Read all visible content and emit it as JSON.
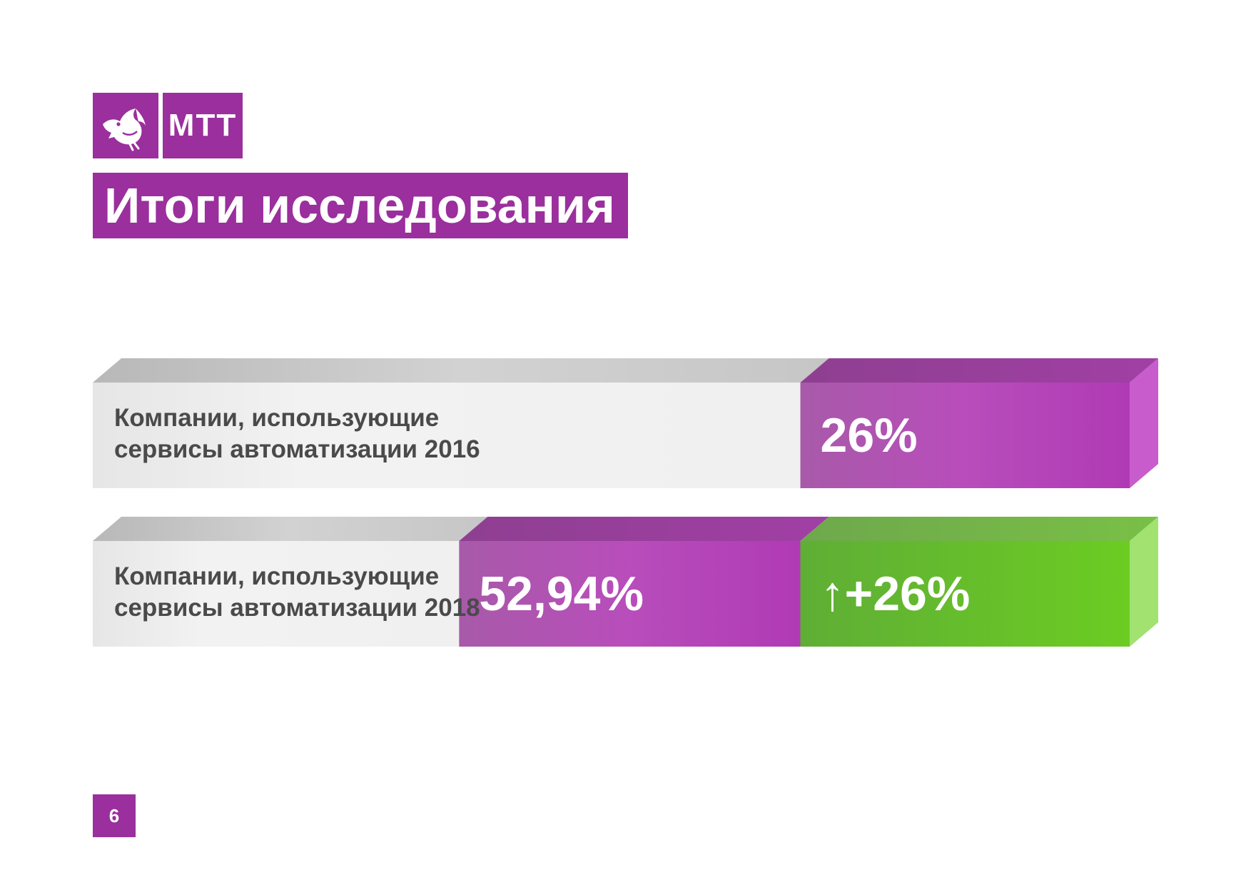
{
  "logo": {
    "icon": "bird-icon",
    "text": "МТТ"
  },
  "title": "Итоги исследования",
  "page_number": "6",
  "colors": {
    "brand_purple": "#9a2f9d",
    "bar_purple": "#b040b3",
    "bar_green": "#6ac72a",
    "bar_gray": "#ececec"
  },
  "chart_data": {
    "type": "bar",
    "orientation": "horizontal",
    "stacked": true,
    "rows": [
      {
        "label_lines": [
          "Компании, использующие",
          "сервисы автоматизации 2016"
        ],
        "category": "2016",
        "segments": [
          {
            "value": 26,
            "label": "26%",
            "color": "purple"
          }
        ]
      },
      {
        "label_lines": [
          "Компании, использующие",
          "сервисы автоматизации 2018"
        ],
        "category": "2018",
        "segments": [
          {
            "value": 26.94,
            "label": "52,94%",
            "color": "purple"
          },
          {
            "value": 26,
            "label": "↑+26%",
            "color": "green"
          }
        ]
      }
    ],
    "title": "",
    "xlabel": "",
    "ylabel": "",
    "legend": "none",
    "grid": false
  }
}
